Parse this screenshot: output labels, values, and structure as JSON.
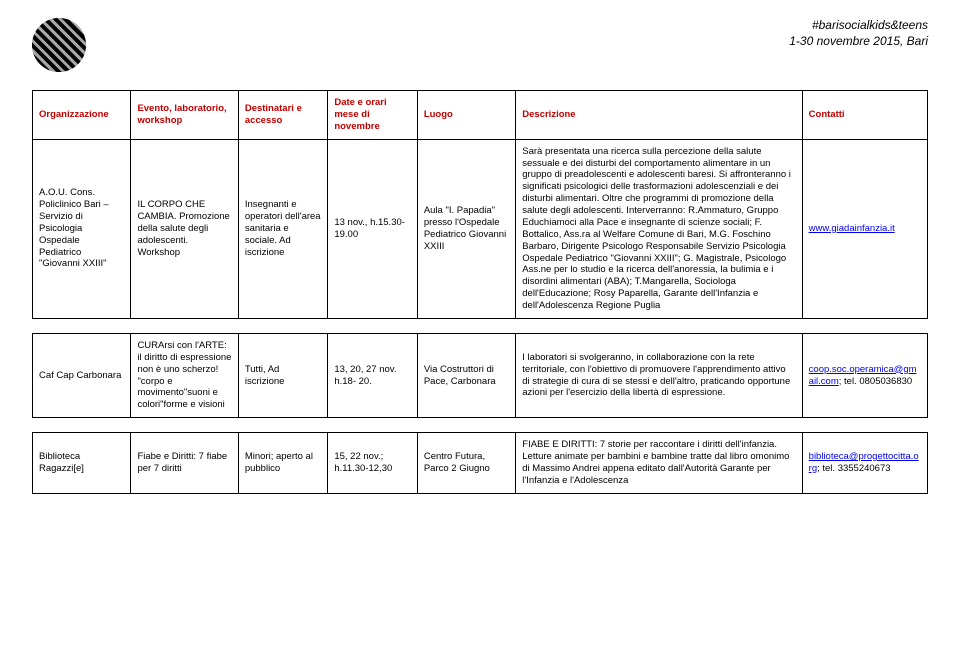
{
  "header": {
    "line1": "#barisocialkids&teens",
    "line2": "1-30 novembre 2015, Bari"
  },
  "columns": {
    "org": "Organizzazione",
    "event": "Evento, laboratorio, workshop",
    "dest": "Destinatari e accesso",
    "date": "Date e orari mese di novembre",
    "luogo": "Luogo",
    "desc": "Descrizione",
    "cont": "Contatti"
  },
  "rows": [
    {
      "org": "A.O.U. Cons. Policlinico Bari – Servizio di Psicologia Ospedale Pediatrico \"Giovanni XXIII\"",
      "event": "IL CORPO CHE CAMBIA. Promozione della salute degli adolescenti. Workshop",
      "dest": "Insegnanti e operatori dell'area sanitaria e sociale. Ad iscrizione",
      "date": "13 nov., h.15.30-19.00",
      "luogo": "Aula \"I. Papadia\" presso l'Ospedale Pediatrico Giovanni XXIII",
      "desc": "Sarà presentata una ricerca sulla percezione della salute sessuale e dei disturbi del comportamento alimentare in un gruppo di preadolescenti e adolescenti baresi. Si affronteranno i significati psicologici delle trasformazioni adolescenziali e dei disturbi alimentari. Oltre che programmi di promozione della salute degli adolescenti. Interverranno: R.Ammaturo, Gruppo Educhiamoci alla Pace e insegnante di scienze sociali; F. Bottalico, Ass.ra al Welfare Comune di Bari, M.G. Foschino Barbaro, Dirigente Psicologo Responsabile Servizio Psicologia Ospedale Pediatrico \"Giovanni XXIII\"; G. Magistrale, Psicologo Ass.ne per lo studio e la ricerca dell'anoressia, la bulimia e i disordini alimentari (ABA); T.Mangarella, Sociologa dell'Educazione; Rosy Paparella, Garante dell'Infanzia e dell'Adolescenza Regione Puglia",
      "cont_link": "www.giadainfanzia.it",
      "cont_after": ""
    },
    {
      "org": "Caf Cap Carbonara",
      "event": "CURArsi con l'ARTE: il diritto di espressione non è uno scherzo! \"corpo e movimento\"suoni e colori\"forme e visioni",
      "dest": "Tutti, Ad iscrizione",
      "date": "13, 20, 27 nov. h.18- 20.",
      "luogo": "Via Costruttori di Pace, Carbonara",
      "desc": "I laboratori si svolgeranno, in collaborazione con la rete territoriale, con l'obiettivo di promuovere l'apprendimento attivo di strategie di cura di se stessi e dell'altro, praticando opportune azioni per l'esercizio della libertà di espressione.",
      "cont_link": "coop.soc.operamica@gmail.com",
      "cont_after": "; tel. 0805036830"
    },
    {
      "org": "Biblioteca Ragazzi[e]",
      "event": "Fiabe e Diritti: 7 fiabe per 7 diritti",
      "dest": "Minori; aperto al pubblico",
      "date": "15, 22 nov.; h.11.30-12,30",
      "luogo": "Centro Futura, Parco 2 Giugno",
      "desc": "FIABE E DIRITTI: 7 storie per raccontare i diritti dell'infanzia. Letture animate per bambini e bambine tratte dal libro omonimo di Massimo Andrei appena editato dall'Autorità Garante per l'Infanzia e l'Adolescenza",
      "cont_link": "biblioteca@progettocitta.org",
      "cont_after": "; tel. 3355240673"
    }
  ]
}
